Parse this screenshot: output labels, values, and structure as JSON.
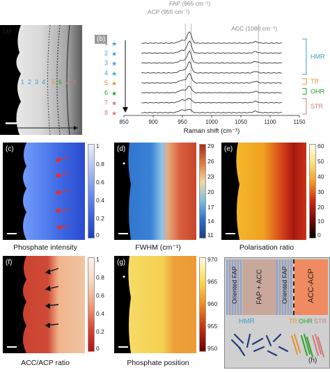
{
  "figure": {
    "panels": {
      "a": {
        "label": "(a)"
      },
      "b": {
        "label": "(b)"
      },
      "c": {
        "label": "(c)",
        "caption": "Phosphate intensity",
        "colorbar_ticks": [
          "1",
          "0.8",
          "0.6",
          "0.4",
          "0.2",
          "0"
        ]
      },
      "d": {
        "label": "(d)",
        "caption": "FWHM (cm⁻¹)",
        "colorbar_ticks": [
          "29",
          "26",
          "23",
          "20",
          "17",
          "14",
          "11"
        ]
      },
      "e": {
        "label": "(e)",
        "caption": "Polarisation ratio",
        "colorbar_ticks": [
          "60",
          "50",
          "40",
          "30",
          "20",
          "10",
          "0"
        ]
      },
      "f": {
        "label": "(f)",
        "caption": "ACC/ACP ratio",
        "colorbar_ticks": [
          "1",
          "0.8",
          "0.6",
          "0.4",
          "0.2",
          "0"
        ]
      },
      "g": {
        "label": "(g)",
        "caption": "Phosphate position",
        "colorbar_ticks": [
          "970",
          "965",
          "960",
          "955",
          "950"
        ]
      },
      "h": {
        "label": "(h)"
      }
    },
    "panel_a_points": [
      "1",
      "2",
      "3",
      "4",
      "5",
      "6",
      "7",
      "8"
    ],
    "schematic": {
      "oriented_fap": "Oriented FAP",
      "fap_acc": "FAP + ACC",
      "oriented_fap2": "Oriented FAP",
      "acc_acp": "ACC-ACP",
      "hmr": "HMR",
      "tr": "TR",
      "ohr": "OHR",
      "str": "STR"
    },
    "colors": {
      "hmr": "#3ea0c8",
      "tr": "#e8902c",
      "ohr": "#2ca02c",
      "str": "#d07878",
      "blue_star": "#3a8fd0"
    }
  },
  "chart_data": {
    "type": "line",
    "xlabel": "Raman shift (cm⁻¹)",
    "xlim": [
      850,
      1150
    ],
    "x_ticks": [
      "850",
      "900",
      "950",
      "1000",
      "1050",
      "1100",
      "1150"
    ],
    "peaks": [
      {
        "label": "ACP (955 cm⁻¹)",
        "x": 955
      },
      {
        "label": "FAP (965 cm⁻¹)",
        "x": 965
      },
      {
        "label": "ACC (1080 cm⁻¹)",
        "x": 1080
      }
    ],
    "series": [
      {
        "name": "1",
        "region": "HMR",
        "peak_height": 0.62
      },
      {
        "name": "2",
        "region": "HMR",
        "peak_height": 0.66
      },
      {
        "name": "3",
        "region": "HMR",
        "peak_height": 0.64
      },
      {
        "name": "4",
        "region": "HMR",
        "peak_height": 0.6
      },
      {
        "name": "5",
        "region": "TR",
        "peak_height": 0.5
      },
      {
        "name": "6",
        "region": "OHR",
        "peak_height": 0.36
      },
      {
        "name": "7",
        "region": "STR",
        "peak_height": 0.24
      },
      {
        "name": "8",
        "region": "STR",
        "peak_height": 0.18
      }
    ],
    "region_labels": [
      "HMR",
      "TR",
      "OHR",
      "STR"
    ]
  }
}
